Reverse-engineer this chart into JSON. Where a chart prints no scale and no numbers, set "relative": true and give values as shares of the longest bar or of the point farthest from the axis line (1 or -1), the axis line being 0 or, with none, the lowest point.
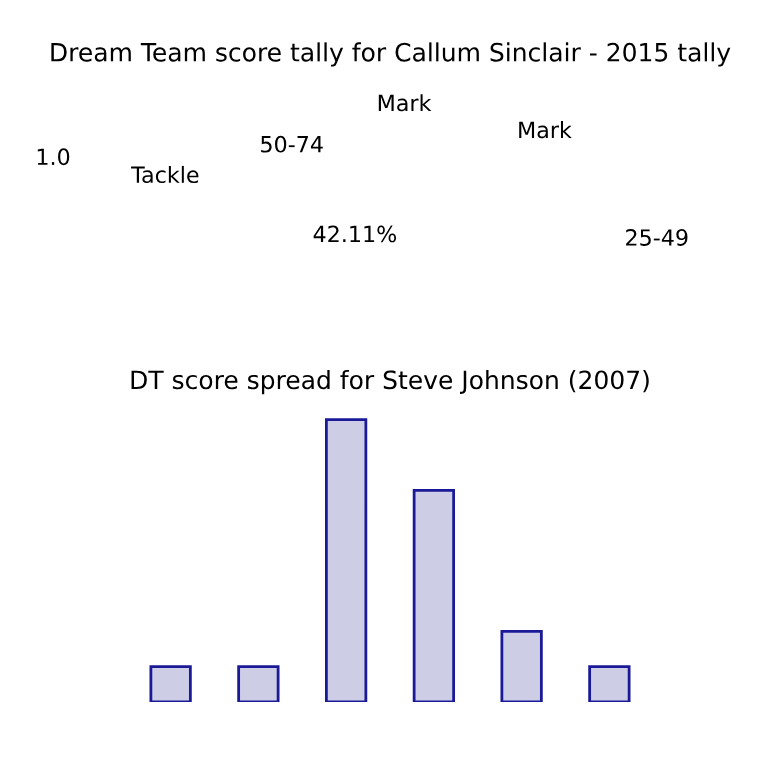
{
  "chart_data": [
    {
      "type": "other",
      "title": "Dream Team score tally for Callum Sinclair - 2015 tally",
      "annotations": [
        "Mark",
        "Mark",
        "50-74",
        "Tackle",
        "42.11%",
        "25-49",
        "1.0"
      ]
    },
    {
      "type": "bar",
      "title": "DT score spread for Steve Johnson (2007)",
      "relative": true,
      "categories": [
        null,
        null,
        null,
        null,
        null,
        null
      ],
      "values": [
        0.125,
        0.125,
        1,
        0.75,
        0.25,
        0.125
      ],
      "color": "#cdcde6"
    }
  ]
}
